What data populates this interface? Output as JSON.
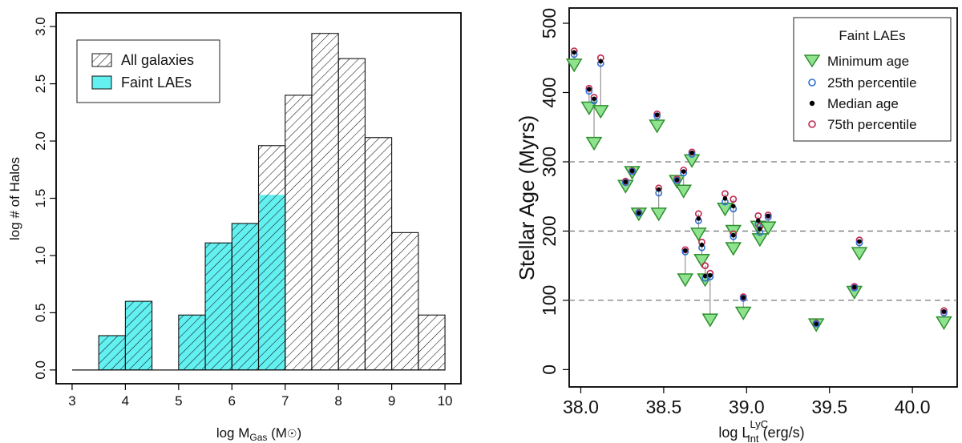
{
  "colors": {
    "faint": "#62f0f0",
    "min_fill": "#8fe38f",
    "min_stroke": "#2f8f2f",
    "p25": "#2f6fd6",
    "median": "#000000",
    "p75": "#c0264e",
    "whisker": "#8a8a8a",
    "axis": "#000000",
    "grid": "#7a7a7a"
  },
  "chart_data": [
    {
      "type": "bar",
      "ylabel": "log # of Halos",
      "xlabel_main": "log M",
      "xlabel_sub": "Gas",
      "xlabel_unit": " (M",
      "xlabel_unit_close": ")",
      "xlim": [
        2.7,
        10.3
      ],
      "ylim": [
        -0.12,
        3.12
      ],
      "xticks": [
        3,
        4,
        5,
        6,
        7,
        8,
        9,
        10
      ],
      "xtick_labels": [
        "3",
        "4",
        "5",
        "6",
        "7",
        "8",
        "9",
        "10"
      ],
      "yticks": [
        0.0,
        0.5,
        1.0,
        1.5,
        2.0,
        2.5,
        3.0
      ],
      "ytick_labels": [
        "0.0",
        "0.5",
        "1.0",
        "1.5",
        "2.0",
        "2.5",
        "3.0"
      ],
      "bin_width": 0.5,
      "all_galaxies": {
        "name": "All galaxies",
        "bin_left": [
          3.0,
          3.5,
          4.0,
          4.5,
          5.0,
          5.5,
          6.0,
          6.5,
          7.0,
          7.5,
          8.0,
          8.5,
          9.0,
          9.5
        ],
        "values": [
          0.0,
          0.3,
          0.6,
          0.0,
          0.48,
          1.11,
          1.28,
          1.96,
          2.4,
          2.94,
          2.72,
          2.03,
          1.2,
          0.48
        ]
      },
      "faint_laes": {
        "name": "Faint LAEs",
        "bin_left": [
          3.5,
          4.0,
          5.0,
          5.5,
          6.0,
          6.5
        ],
        "values": [
          0.3,
          0.6,
          0.48,
          1.11,
          1.28,
          1.53
        ]
      },
      "legend": [
        "All galaxies",
        "Faint LAEs"
      ],
      "legend_position": "top-left"
    },
    {
      "type": "scatter",
      "ylabel": "Stellar Age (Myrs)",
      "xlabel_main": "log L",
      "xlabel_sup": "LyC",
      "xlabel_sub": "Int",
      "xlabel_unit": " (erg/s)",
      "xlim": [
        37.93,
        40.27
      ],
      "ylim": [
        -25,
        522
      ],
      "xticks": [
        38.0,
        38.5,
        39.0,
        39.5,
        40.0
      ],
      "xtick_labels": [
        "38.0",
        "38.5",
        "39.0",
        "39.5",
        "40.0"
      ],
      "yticks": [
        0,
        100,
        200,
        300,
        400,
        500
      ],
      "ytick_labels": [
        "0",
        "100",
        "200",
        "300",
        "400",
        "500"
      ],
      "hlines": [
        100,
        200,
        300
      ],
      "legend_title": "Faint LAEs",
      "legend": [
        "Minimum age",
        "25th percentile",
        "Median age",
        "75th percentile"
      ],
      "legend_position": "top-right",
      "points": [
        {
          "x": 37.96,
          "min": 440,
          "p25": 455,
          "med": 458,
          "p75": 460
        },
        {
          "x": 38.05,
          "min": 378,
          "p25": 402,
          "med": 405,
          "p75": 406
        },
        {
          "x": 38.08,
          "min": 327,
          "p25": 388,
          "med": 391,
          "p75": 393
        },
        {
          "x": 38.12,
          "min": 373,
          "p25": 442,
          "med": 445,
          "p75": 450
        },
        {
          "x": 38.27,
          "min": 265,
          "p25": 270,
          "med": 271,
          "p75": 272
        },
        {
          "x": 38.31,
          "min": 285,
          "p25": 286,
          "med": 287,
          "p75": 287
        },
        {
          "x": 38.35,
          "min": 225,
          "p25": 226,
          "med": 226,
          "p75": 227
        },
        {
          "x": 38.46,
          "min": 352,
          "p25": 366,
          "med": 368,
          "p75": 369
        },
        {
          "x": 38.47,
          "min": 225,
          "p25": 255,
          "med": 260,
          "p75": 262
        },
        {
          "x": 38.58,
          "min": 272,
          "p25": 273,
          "med": 274,
          "p75": 275
        },
        {
          "x": 38.62,
          "min": 258,
          "p25": 284,
          "med": 286,
          "p75": 288
        },
        {
          "x": 38.67,
          "min": 302,
          "p25": 311,
          "med": 313,
          "p75": 314
        },
        {
          "x": 38.71,
          "min": 196,
          "p25": 215,
          "med": 218,
          "p75": 225
        },
        {
          "x": 38.63,
          "min": 130,
          "p25": 170,
          "med": 172,
          "p75": 173
        },
        {
          "x": 38.73,
          "min": 158,
          "p25": 176,
          "med": 180,
          "p75": 184
        },
        {
          "x": 38.75,
          "min": 130,
          "p25": 132,
          "med": 135,
          "p75": 150
        },
        {
          "x": 38.78,
          "min": 72,
          "p25": 134,
          "med": 136,
          "p75": 139
        },
        {
          "x": 38.87,
          "min": 232,
          "p25": 242,
          "med": 247,
          "p75": 254
        },
        {
          "x": 38.92,
          "min": 200,
          "p25": 232,
          "med": 236,
          "p75": 246
        },
        {
          "x": 38.92,
          "min": 175,
          "p25": 192,
          "med": 194,
          "p75": 196
        },
        {
          "x": 38.98,
          "min": 82,
          "p25": 103,
          "med": 104,
          "p75": 105
        },
        {
          "x": 39.07,
          "min": 206,
          "p25": 210,
          "med": 215,
          "p75": 222
        },
        {
          "x": 39.08,
          "min": 188,
          "p25": 198,
          "med": 203,
          "p75": 207
        },
        {
          "x": 39.13,
          "min": 205,
          "p25": 220,
          "med": 222,
          "p75": 223
        },
        {
          "x": 39.42,
          "min": 65,
          "p25": 66,
          "med": 66,
          "p75": 67
        },
        {
          "x": 39.65,
          "min": 112,
          "p25": 118,
          "med": 119,
          "p75": 120
        },
        {
          "x": 39.68,
          "min": 168,
          "p25": 183,
          "med": 185,
          "p75": 187
        },
        {
          "x": 40.19,
          "min": 68,
          "p25": 82,
          "med": 84,
          "p75": 85
        }
      ]
    }
  ]
}
